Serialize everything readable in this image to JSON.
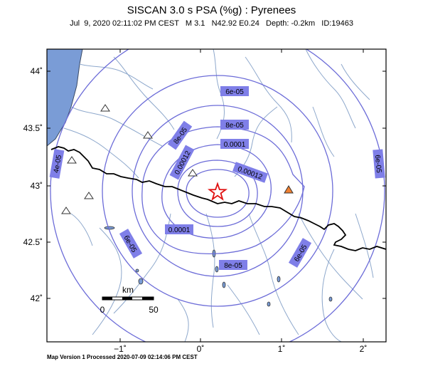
{
  "header": {
    "title": "SISCAN 3.0 s PSA (%g) : Pyrenees",
    "subtitle": "Jul  9, 2020 02:11:02 PM CEST   M 3.1   N42.92 E0.24   Depth: -0.2km   ID:19463"
  },
  "footer": {
    "text": "Map Version 1 Processed 2020-07-09 02:14:06 PM CEST"
  },
  "map": {
    "y_axis_labels": [
      "44˚",
      "43.5˚",
      "43˚",
      "42.5˚",
      "42˚"
    ],
    "x_axis_labels": [
      "−1˚",
      "0˚",
      "1˚",
      "2˚"
    ],
    "contour_labels": [
      "6e-05",
      "8e-05",
      "8e-05",
      "0.0001",
      "0.00012",
      "0.00012",
      "0.0001",
      "6e-05",
      "6e-05",
      "8e-05",
      "6e-05",
      "4e-05"
    ],
    "scale_bar": {
      "unit": "km",
      "start": "0",
      "end": "50"
    },
    "colors": {
      "contour": "#6c6cd8",
      "label_box": "#7f7fe8",
      "sea": "#7a9cd6",
      "river": "#8ea8cc",
      "border": "#000000",
      "epicenter": "#e01010",
      "station_active": "#f08030"
    }
  }
}
